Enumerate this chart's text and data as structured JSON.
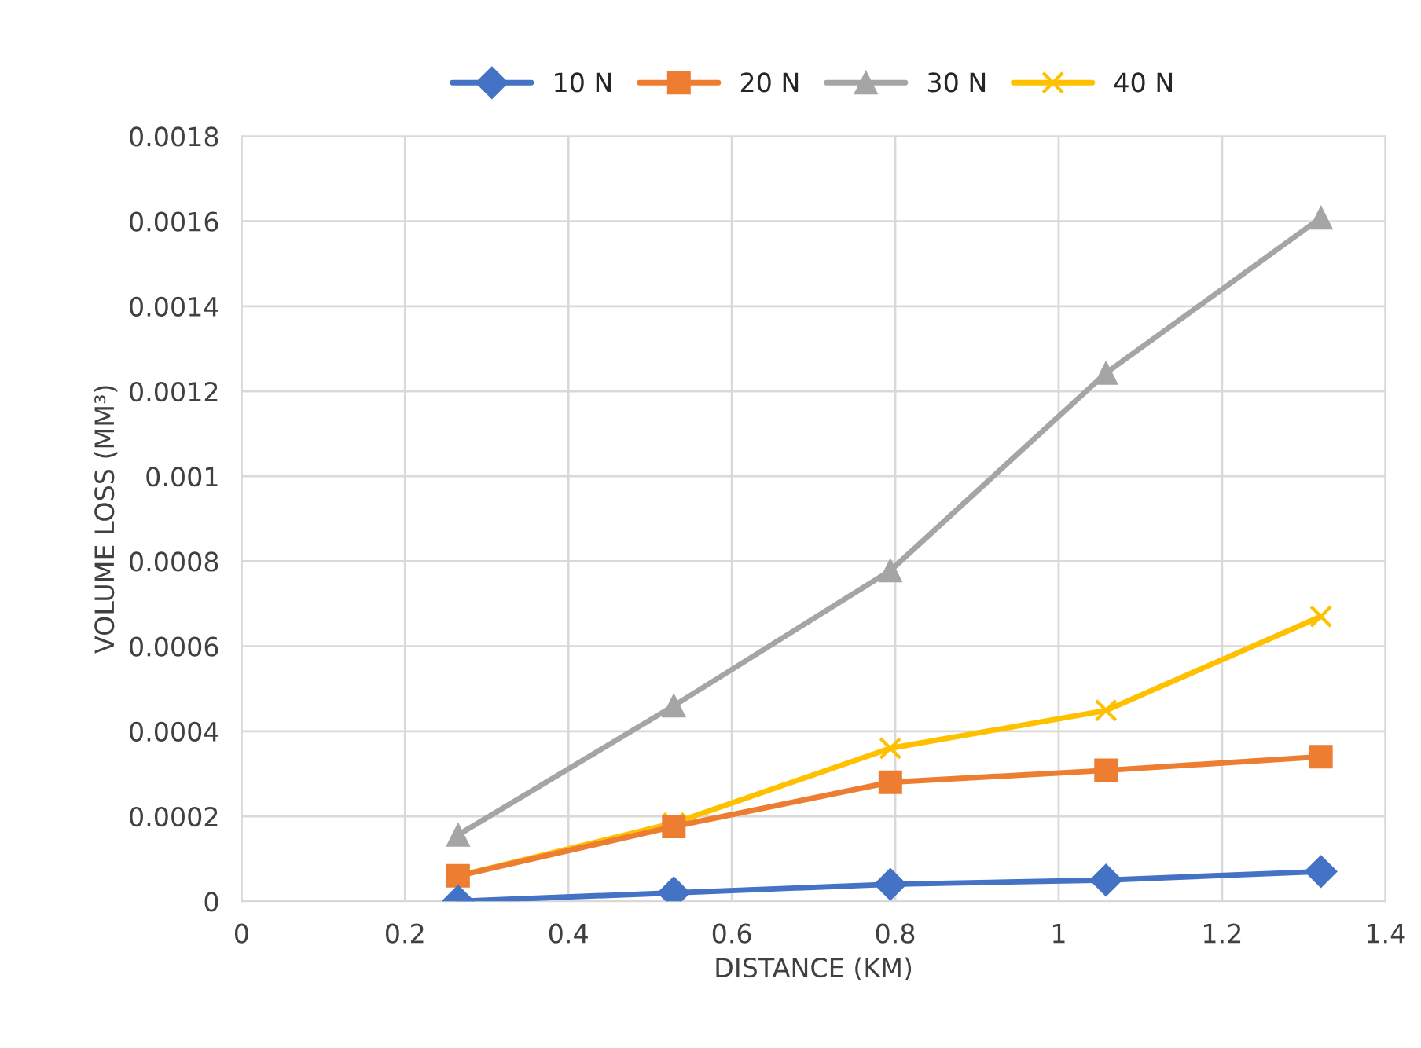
{
  "chart_data": {
    "type": "line",
    "xlabel": "DISTANCE (KM)",
    "ylabel": "VOLUME LOSS (MM³)",
    "x": [
      0.265,
      0.529,
      0.794,
      1.058,
      1.321
    ],
    "series": [
      {
        "name": "10 N",
        "color": "#4472c4",
        "marker": "diamond",
        "values": [
          0,
          2e-05,
          4e-05,
          5e-05,
          7e-05
        ]
      },
      {
        "name": "20 N",
        "color": "#ed7d31",
        "marker": "square",
        "values": [
          6e-05,
          0.000176,
          0.00028,
          0.000308,
          0.00034
        ]
      },
      {
        "name": "30 N",
        "color": "#a5a5a5",
        "marker": "triangle",
        "values": [
          0.000156,
          0.00046,
          0.000778,
          0.001243,
          0.001608
        ]
      },
      {
        "name": "40 N",
        "color": "#ffc000",
        "marker": "cross",
        "values": [
          6e-05,
          0.000184,
          0.00036,
          0.000449,
          0.00067
        ]
      }
    ],
    "xlim": [
      0,
      1.4
    ],
    "xticks": [
      0,
      0.2,
      0.4,
      0.6,
      0.8,
      1,
      1.2,
      1.4
    ],
    "ylim": [
      0,
      0.0018
    ],
    "yticks": [
      0,
      0.0002,
      0.0004,
      0.0006,
      0.0008,
      0.001,
      0.0012,
      0.0014,
      0.0016,
      0.0018
    ],
    "grid": true,
    "legend": "top",
    "line_style": "solid"
  }
}
